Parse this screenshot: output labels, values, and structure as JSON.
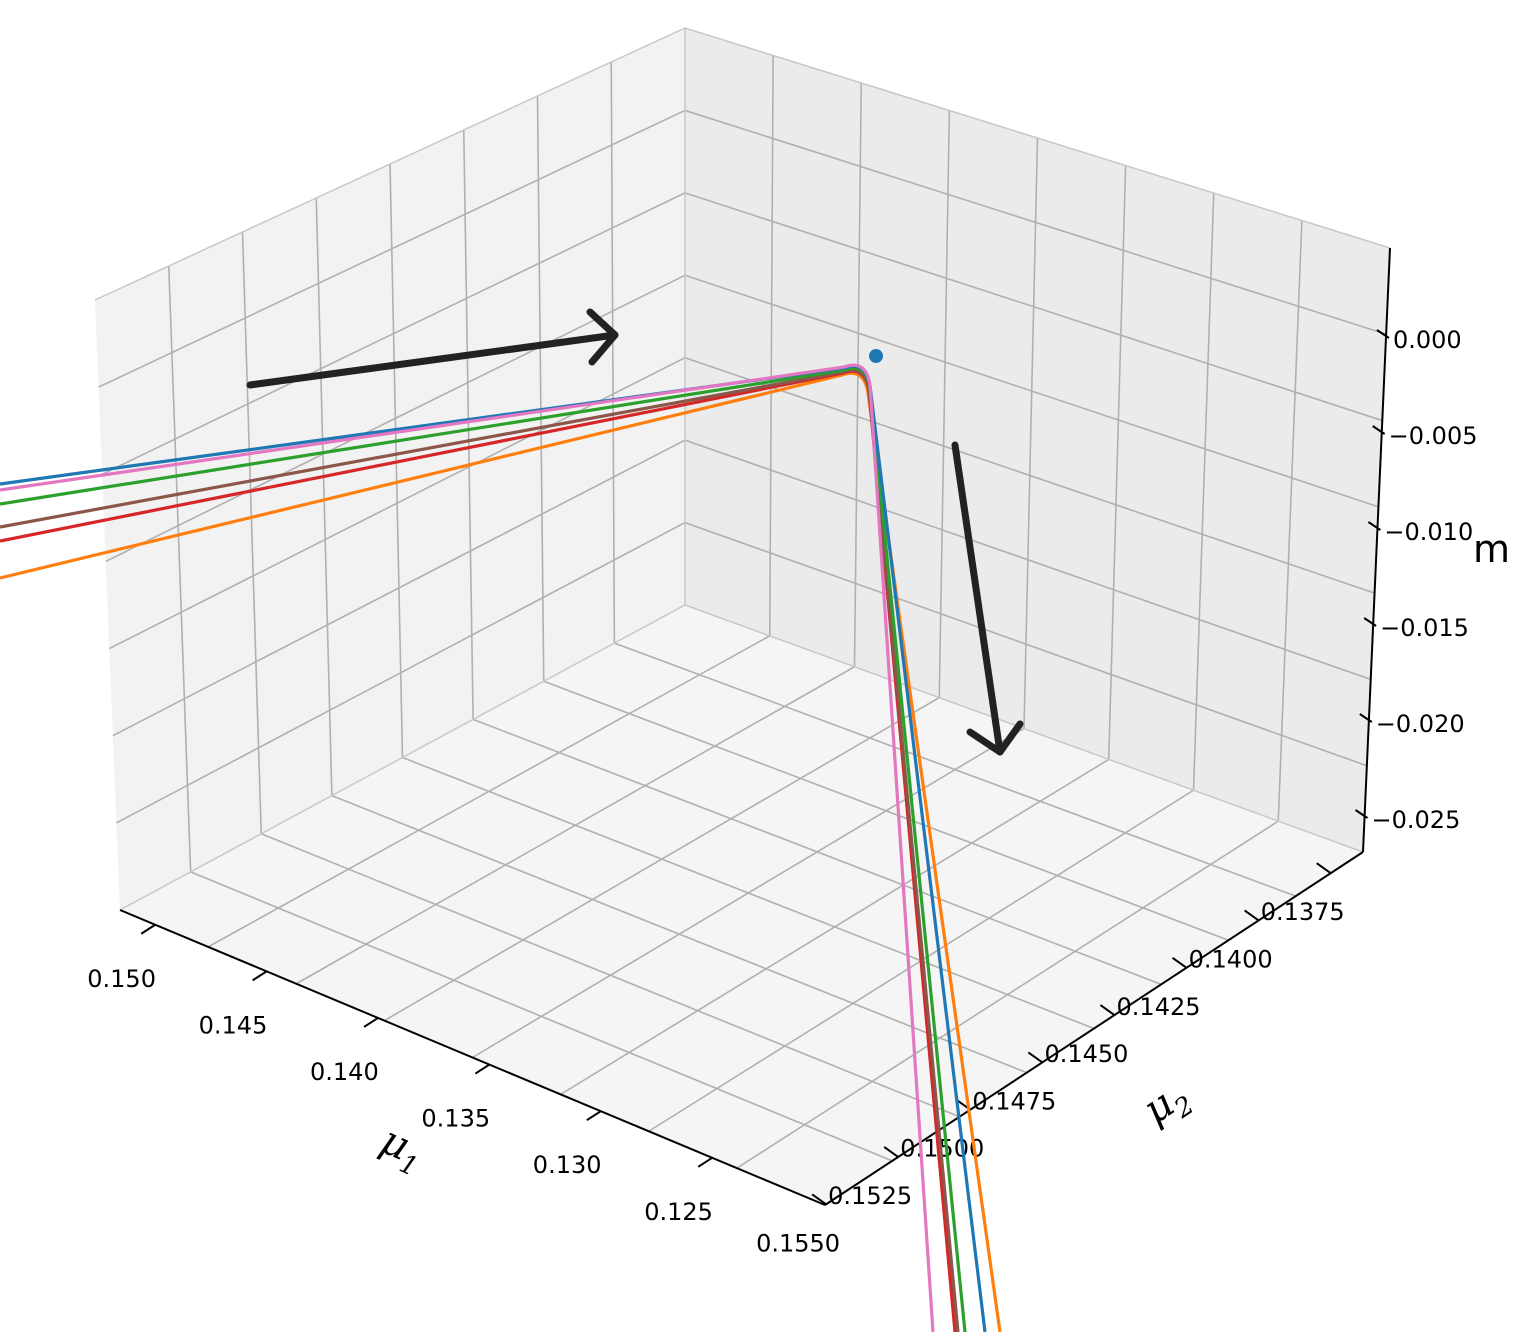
{
  "chart_data": {
    "type": "line",
    "projection": "3d",
    "xlabel": "μ",
    "xlabel_sub": "1",
    "ylabel": "μ",
    "ylabel_sub": "2",
    "zlabel": "m",
    "x_ticks": [
      "0.150",
      "0.145",
      "0.140",
      "0.135",
      "0.130",
      "0.125"
    ],
    "y_ticks": [
      "0.1375",
      "0.1400",
      "0.1425",
      "0.1450",
      "0.1475",
      "0.1500",
      "0.1525",
      "0.1550"
    ],
    "z_ticks": [
      "0.000",
      "−0.005",
      "−0.010",
      "−0.015",
      "−0.020",
      "−0.025"
    ],
    "grid": true,
    "colors": {
      "blue": "#1f77b4",
      "orange": "#ff7f0e",
      "green": "#2ca02c",
      "red": "#d62728",
      "brown": "#8c564b",
      "pink": "#e377c2",
      "arrow": "#222222",
      "pane_left": "#f2f2f2",
      "pane_right": "#ebebeb",
      "pane_floor": "#f5f5f5",
      "grid": "#b0b0b0"
    },
    "series": [
      {
        "color": "blue"
      },
      {
        "color": "orange"
      },
      {
        "color": "green"
      },
      {
        "color": "red"
      },
      {
        "color": "brown"
      },
      {
        "color": "pink"
      }
    ],
    "marker": {
      "color": "blue"
    },
    "annotations": [
      {
        "type": "arrow",
        "direction": "toward-corner"
      },
      {
        "type": "arrow",
        "direction": "downward"
      }
    ]
  }
}
